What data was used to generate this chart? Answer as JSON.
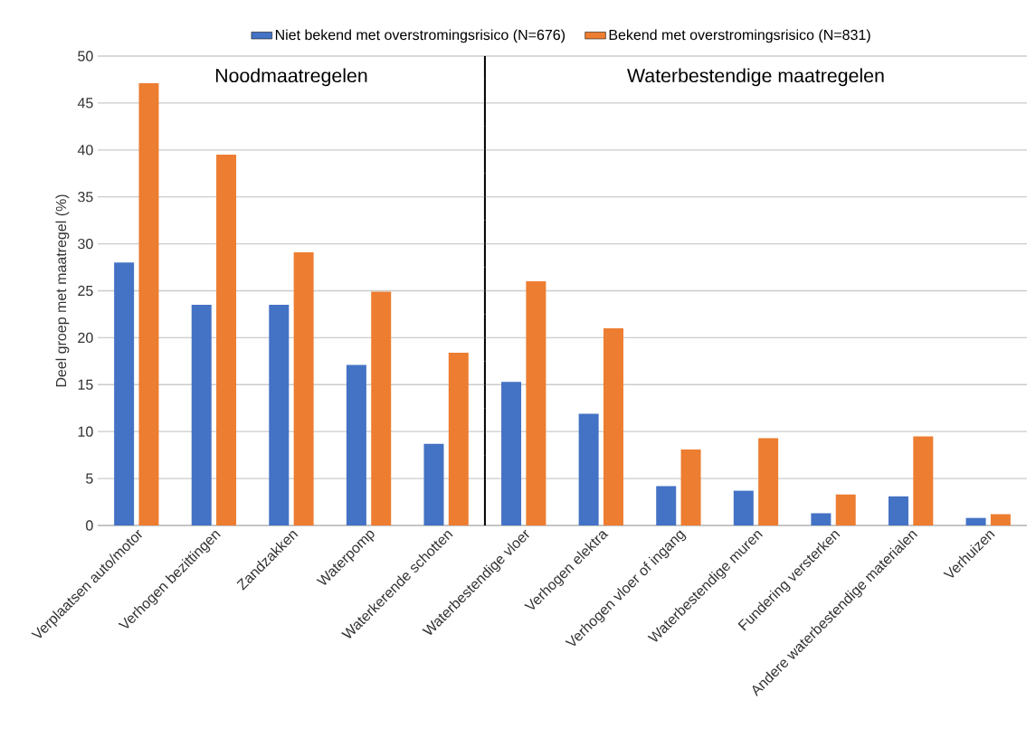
{
  "chart_data": {
    "type": "bar",
    "categories": [
      "Verplaatsen auto/motor",
      "Verhogen bezittingen",
      "Zandzakken",
      "Waterpomp",
      "Waterkerende schotten",
      "Waterbestendige vloer",
      "Verhogen elektra",
      "Verhogen vloer of ingang",
      "Waterbestendige muren",
      "Fundering versterken",
      "Andere waterbestendige materialen",
      "Verhuizen"
    ],
    "series": [
      {
        "name": "Niet bekend met overstromingsrisico (N=676)",
        "color": "#4472c4",
        "values": [
          28.0,
          23.5,
          23.5,
          17.1,
          8.7,
          15.3,
          11.9,
          4.2,
          3.7,
          1.3,
          3.1,
          0.8
        ]
      },
      {
        "name": "Bekend met overstromingsrisico (N=831)",
        "color": "#ed7d31",
        "values": [
          47.1,
          39.5,
          29.1,
          24.9,
          18.4,
          26.0,
          21.0,
          8.1,
          9.3,
          3.3,
          9.5,
          1.2
        ]
      }
    ],
    "ylabel": "Deel groep met maatregel (%)",
    "ylim": [
      0,
      50
    ],
    "yticks": [
      0,
      5,
      10,
      15,
      20,
      25,
      30,
      35,
      40,
      45,
      50
    ],
    "grid": "y",
    "legend": "top",
    "annotations": [
      "Noodmaatregelen",
      "Waterbestendige maatregelen"
    ]
  }
}
